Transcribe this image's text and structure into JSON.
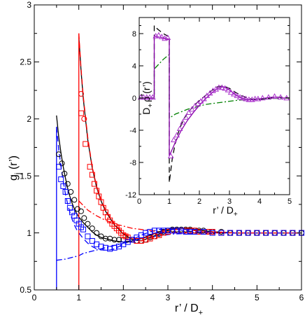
{
  "chart_data": [
    {
      "type": "line",
      "xlabel_main": "r’ / D",
      "xlabel_sub": "+",
      "ylabel_main": "g",
      "ylabel_sub": "j",
      "ylabel_tail": " (r’)",
      "xlim": [
        0,
        6
      ],
      "ylim": [
        0.5,
        3
      ],
      "xticks": [
        0,
        1,
        2,
        3,
        4,
        5,
        6
      ],
      "yticks": [
        0.5,
        1,
        1.5,
        2,
        2.5,
        3
      ],
      "xtick_labels": [
        "0",
        "1",
        "2",
        "3",
        "4",
        "5",
        "6"
      ],
      "ytick_labels": [
        "0.5",
        "1",
        "1.5",
        "2",
        "2.5",
        "3"
      ],
      "grid": false,
      "series": [
        {
          "color": "#000000",
          "style": "solid",
          "x": [
            0.5,
            0.55,
            0.6,
            0.65,
            0.7,
            0.75,
            0.8,
            0.85,
            0.9,
            0.95,
            1.0,
            1.1,
            1.2,
            1.3,
            1.4,
            1.5,
            1.6,
            1.8,
            2.0,
            2.2,
            2.4,
            2.6,
            2.8,
            3.0,
            3.2,
            3.4,
            3.6,
            3.8,
            4.0,
            4.5,
            5.0,
            5.5,
            6.0
          ],
          "y": [
            2.03,
            1.84,
            1.7,
            1.58,
            1.48,
            1.39,
            1.32,
            1.26,
            1.21,
            1.17,
            1.14,
            1.09,
            1.05,
            1.01,
            0.98,
            0.96,
            0.95,
            0.93,
            0.92,
            0.93,
            0.95,
            0.98,
            1.01,
            1.03,
            1.04,
            1.04,
            1.03,
            1.02,
            1.01,
            1.0,
            1.0,
            1.0,
            1.0
          ]
        },
        {
          "color": "#000000",
          "style": "solid",
          "x": [
            1.0,
            1.05,
            1.1,
            1.2,
            1.3,
            1.4,
            1.5,
            1.6,
            1.8,
            2.0,
            2.2,
            2.4,
            2.6,
            2.8,
            3.0,
            3.2,
            3.4,
            3.6,
            3.8,
            4.0,
            4.5,
            5.0,
            5.5,
            6.0
          ],
          "y": [
            2.72,
            2.42,
            2.18,
            1.82,
            1.57,
            1.4,
            1.28,
            1.19,
            1.07,
            0.99,
            0.94,
            0.93,
            0.96,
            0.99,
            1.02,
            1.04,
            1.04,
            1.03,
            1.02,
            1.01,
            1.0,
            1.0,
            1.0,
            1.0
          ]
        },
        {
          "color": "#ff0000",
          "style": "dashed",
          "x": [
            1.0,
            1.05,
            1.1,
            1.2,
            1.3,
            1.4,
            1.5,
            1.6,
            1.8,
            2.0,
            2.2,
            2.4,
            2.6,
            2.8,
            3.0,
            3.2,
            3.4,
            3.6,
            3.8,
            4.0,
            4.5,
            5.0,
            5.5,
            6.0
          ],
          "y": [
            2.75,
            2.44,
            2.2,
            1.84,
            1.58,
            1.41,
            1.29,
            1.2,
            1.08,
            1.0,
            0.95,
            0.93,
            0.95,
            0.98,
            1.01,
            1.03,
            1.03,
            1.02,
            1.01,
            1.01,
            1.0,
            1.0,
            1.0,
            1.0
          ]
        },
        {
          "color": "#0000ff",
          "style": "dashed",
          "x": [
            0.5,
            0.55,
            0.6,
            0.65,
            0.7,
            0.75,
            0.8,
            0.85,
            0.9,
            0.95,
            1.0,
            1.1,
            1.2,
            1.3,
            1.4,
            1.5,
            1.6,
            1.7,
            1.8,
            1.9,
            2.0,
            2.2,
            2.4,
            2.6,
            2.8,
            3.0,
            3.2,
            3.4,
            3.6,
            3.8,
            4.0,
            4.5,
            5.0,
            5.5,
            6.0
          ],
          "y": [
            1.93,
            1.73,
            1.58,
            1.45,
            1.34,
            1.25,
            1.18,
            1.12,
            1.07,
            1.03,
            1.0,
            0.95,
            0.91,
            0.88,
            0.86,
            0.85,
            0.85,
            0.85,
            0.86,
            0.88,
            0.9,
            0.94,
            0.98,
            1.01,
            1.03,
            1.03,
            1.03,
            1.02,
            1.01,
            1.01,
            1.0,
            1.0,
            1.0,
            1.0,
            1.0
          ]
        },
        {
          "color": "#0000ff",
          "style": "dashdot",
          "x": [
            0.5,
            0.7,
            0.9,
            1.0,
            1.1,
            1.3,
            1.5,
            1.7,
            1.9,
            2.1,
            2.3,
            2.5,
            2.7,
            2.9,
            3.1,
            3.5,
            4.0,
            5.0,
            6.0
          ],
          "y": [
            0.76,
            0.77,
            0.79,
            0.8,
            0.82,
            0.84,
            0.86,
            0.88,
            0.9,
            0.92,
            0.94,
            0.96,
            0.97,
            0.98,
            0.99,
            0.995,
            1.0,
            1.0,
            1.0
          ]
        },
        {
          "color": "#ff0000",
          "style": "dashdot",
          "x": [
            1.0,
            1.2,
            1.4,
            1.6,
            1.8,
            2.0,
            2.2,
            2.4,
            2.6,
            2.8,
            3.0,
            3.5,
            4.0,
            5.0,
            6.0
          ],
          "y": [
            1.28,
            1.2,
            1.15,
            1.11,
            1.08,
            1.06,
            1.04,
            1.03,
            1.02,
            1.01,
            1.01,
            1.0,
            1.0,
            1.0,
            1.0
          ]
        },
        {
          "color": "#ff0000",
          "style": "vertical",
          "x": [
            1.0,
            1.0
          ],
          "y": [
            0.5,
            2.75
          ]
        },
        {
          "color": "#0000ff",
          "style": "vertical",
          "x": [
            0.5,
            0.5
          ],
          "y": [
            0.5,
            1.93
          ]
        }
      ],
      "markers": [
        {
          "shape": "circle",
          "color": "#000000",
          "x": [
            0.55,
            0.62,
            0.68,
            0.75,
            0.82,
            0.9,
            0.97,
            1.05,
            1.12,
            1.2,
            1.3,
            1.4,
            1.5,
            1.6,
            1.7,
            1.8,
            1.9,
            2.0,
            2.1,
            2.2,
            2.3,
            2.4,
            2.5,
            2.6,
            2.7,
            2.8,
            2.9,
            3.0,
            3.1,
            3.2,
            3.3,
            3.4,
            3.5,
            3.6,
            3.7,
            3.8,
            3.9,
            4.0,
            4.2,
            4.4,
            4.6,
            4.8,
            5.0,
            5.2,
            5.4,
            5.6,
            5.8,
            6.0
          ],
          "y": [
            1.69,
            1.61,
            1.52,
            1.43,
            1.36,
            1.29,
            1.21,
            1.19,
            1.13,
            1.08,
            1.04,
            1.0,
            0.97,
            0.95,
            0.95,
            0.94,
            0.94,
            0.94,
            0.94,
            0.94,
            0.93,
            0.93,
            0.94,
            0.96,
            0.97,
            0.99,
            1.01,
            1.02,
            1.03,
            1.03,
            1.03,
            1.03,
            1.03,
            1.02,
            1.02,
            1.02,
            1.01,
            1.01,
            1.01,
            1.0,
            1.0,
            1.0,
            1.0,
            1.0,
            1.0,
            1.0,
            1.0,
            1.0
          ]
        },
        {
          "shape": "circle",
          "color": "#ff0000",
          "x": [
            1.05,
            1.12
          ],
          "y": [
            2.22,
            2.0
          ]
        },
        {
          "shape": "square",
          "color": "#ff0000",
          "x": [
            1.05,
            1.15,
            1.25,
            1.3,
            1.35,
            1.4,
            1.45,
            1.5,
            1.55,
            1.6,
            1.65,
            1.7,
            1.75,
            1.8,
            1.85,
            1.9,
            1.95,
            2.0,
            2.05,
            2.1,
            2.2,
            2.3,
            2.4,
            2.5,
            2.6,
            2.7,
            2.8,
            2.9,
            3.0,
            3.1,
            3.2,
            3.3,
            3.4,
            3.5,
            3.6,
            3.7,
            3.8,
            3.9,
            4.0,
            4.2,
            4.4,
            4.6,
            4.8,
            5.0,
            5.2,
            5.4,
            5.6,
            5.8,
            6.0
          ],
          "y": [
            2.05,
            1.78,
            1.58,
            1.51,
            1.43,
            1.37,
            1.32,
            1.27,
            1.22,
            1.18,
            1.14,
            1.11,
            1.08,
            1.06,
            1.04,
            1.02,
            1.0,
            0.98,
            0.97,
            0.96,
            0.94,
            0.93,
            0.93,
            0.94,
            0.95,
            0.97,
            0.98,
            1.0,
            1.01,
            1.02,
            1.02,
            1.02,
            1.02,
            1.02,
            1.02,
            1.01,
            1.01,
            1.01,
            1.01,
            1.0,
            1.0,
            1.0,
            1.0,
            1.0,
            1.0,
            1.0,
            1.0,
            1.0,
            1.0
          ]
        },
        {
          "shape": "square",
          "color": "#0000ff",
          "x": [
            0.55,
            0.6,
            0.65,
            0.7,
            0.75,
            0.8,
            0.85,
            0.9,
            0.95,
            1.0,
            1.05,
            1.1,
            1.2,
            1.3,
            1.4,
            1.5,
            1.6,
            1.7,
            1.8,
            1.9,
            2.0,
            2.1,
            2.2,
            2.3,
            2.4,
            2.5,
            2.6,
            2.7,
            2.8,
            2.9,
            3.0,
            3.1,
            3.2,
            3.3,
            3.4,
            3.5,
            3.6,
            3.8,
            4.0,
            4.2,
            4.4,
            4.6,
            4.8,
            5.0,
            5.2,
            5.4,
            5.6,
            5.8,
            6.0
          ],
          "y": [
            1.58,
            1.47,
            1.41,
            1.36,
            1.28,
            1.22,
            1.18,
            1.15,
            1.11,
            1.08,
            1.05,
            1.03,
            0.97,
            0.93,
            0.9,
            0.88,
            0.87,
            0.86,
            0.87,
            0.88,
            0.9,
            0.92,
            0.94,
            0.96,
            0.98,
            1.0,
            1.01,
            1.02,
            1.02,
            1.02,
            1.02,
            1.02,
            1.02,
            1.02,
            1.01,
            1.01,
            1.01,
            1.01,
            1.0,
            1.0,
            1.0,
            1.0,
            1.0,
            1.0,
            1.0,
            1.0,
            1.0,
            1.0,
            1.0
          ]
        }
      ]
    },
    {
      "type": "line",
      "xlabel_main": "r’ / D",
      "xlabel_sub": "+",
      "ylabel_main": "D",
      "ylabel_sub": "+",
      "ylabel_rho": "ρ",
      "ylabel_sup": "*",
      "ylabel_tail": "(r’)",
      "xlim": [
        0,
        5
      ],
      "ylim": [
        -12,
        10
      ],
      "xticks": [
        0,
        1,
        2,
        3,
        4,
        5
      ],
      "yticks": [
        -12,
        -8,
        -4,
        0,
        4,
        8
      ],
      "xtick_labels": [
        "0",
        "1",
        "2",
        "3",
        "4",
        "5"
      ],
      "ytick_labels": [
        "-12",
        "-8",
        "-4",
        "0",
        "4",
        "8"
      ],
      "grid": false,
      "series": [
        {
          "color": "#000000",
          "style": "dashed",
          "x": [
            0,
            0.5,
            0.5,
            0.6,
            0.7,
            0.8,
            0.9,
            1.0,
            1.0,
            1.1,
            1.2,
            1.3,
            1.4,
            1.5,
            1.6,
            1.8,
            2.0,
            2.2,
            2.4,
            2.6,
            2.8,
            3.0,
            3.2,
            3.4,
            3.6,
            3.8,
            4.0,
            4.2,
            4.4,
            4.6,
            4.8,
            5.0
          ],
          "y": [
            0,
            0,
            9.0,
            8.6,
            8.3,
            8.0,
            7.8,
            7.6,
            -10.5,
            -7.5,
            -5.6,
            -4.3,
            -3.3,
            -2.5,
            -1.9,
            -1.0,
            -0.3,
            0.3,
            0.9,
            1.4,
            1.5,
            1.2,
            0.7,
            0.3,
            0.0,
            -0.2,
            -0.2,
            -0.1,
            0.0,
            0.1,
            0.1,
            0.0
          ]
        },
        {
          "color": "#008000",
          "style": "dashdot",
          "x": [
            0,
            0.5,
            0.5,
            0.6,
            0.7,
            0.8,
            0.9,
            1.0,
            1.0,
            1.2,
            1.4,
            1.6,
            1.8,
            2.0,
            2.2,
            2.4,
            2.6,
            2.8,
            3.0,
            3.2,
            3.4,
            3.6,
            3.8,
            4.0,
            4.2,
            4.4,
            4.6,
            4.8,
            5.0
          ],
          "y": [
            0,
            0,
            3.6,
            4.0,
            4.4,
            4.8,
            5.1,
            5.4,
            -2.5,
            -2.0,
            -1.7,
            -1.4,
            -1.2,
            -1.0,
            -0.8,
            -0.7,
            -0.6,
            -0.5,
            -0.4,
            -0.3,
            -0.25,
            -0.2,
            -0.15,
            -0.1,
            -0.1,
            -0.05,
            -0.05,
            0.0,
            0.0
          ]
        },
        {
          "color": "#8800aa",
          "style": "solid",
          "x": [
            0,
            0.5,
            0.5,
            1.0,
            1.0,
            1.2,
            1.4,
            1.6,
            1.8,
            2.0,
            2.2,
            2.4,
            2.6,
            2.8,
            3.0,
            3.2,
            3.4,
            3.6,
            3.8,
            4.0,
            4.2,
            4.4,
            4.6,
            4.8,
            5.0
          ],
          "y": [
            0,
            0,
            7.7,
            7.3,
            -7.2,
            -5.5,
            -4.0,
            -2.8,
            -1.8,
            -0.9,
            -0.1,
            0.6,
            1.2,
            1.4,
            1.0,
            0.4,
            0.0,
            -0.2,
            -0.2,
            -0.1,
            0.0,
            0.1,
            0.1,
            0.0,
            0.0
          ]
        }
      ],
      "markers": [
        {
          "shape": "triangle",
          "color": "#aa33cc",
          "x": [
            0.05,
            0.15,
            0.25,
            0.35,
            0.45,
            0.55,
            0.65,
            0.75,
            0.85,
            0.95,
            1.05,
            1.15,
            1.25,
            1.35,
            1.45,
            1.55,
            1.65,
            1.75,
            1.85,
            1.95,
            2.05,
            2.15,
            2.25,
            2.35,
            2.45,
            2.55,
            2.65,
            2.75,
            2.85,
            2.95,
            3.05,
            3.15,
            3.25,
            3.35,
            3.45,
            3.55,
            3.65,
            3.75,
            3.85,
            3.95,
            4.1,
            4.3,
            4.5,
            4.7,
            4.9
          ],
          "y": [
            0.1,
            0.1,
            0.1,
            0.1,
            0.1,
            7.7,
            7.8,
            7.6,
            7.4,
            7.5,
            -7.2,
            -5.2,
            -4.6,
            -3.8,
            -3.0,
            -2.4,
            -1.8,
            -1.4,
            -1.0,
            -0.7,
            -0.4,
            -0.1,
            0.3,
            0.6,
            0.9,
            1.1,
            1.3,
            1.3,
            1.2,
            1.0,
            0.7,
            0.5,
            0.3,
            0.1,
            0.0,
            -0.1,
            -0.2,
            -0.2,
            -0.1,
            -0.1,
            0.0,
            0.1,
            0.2,
            0.1,
            0.0
          ]
        }
      ]
    }
  ]
}
